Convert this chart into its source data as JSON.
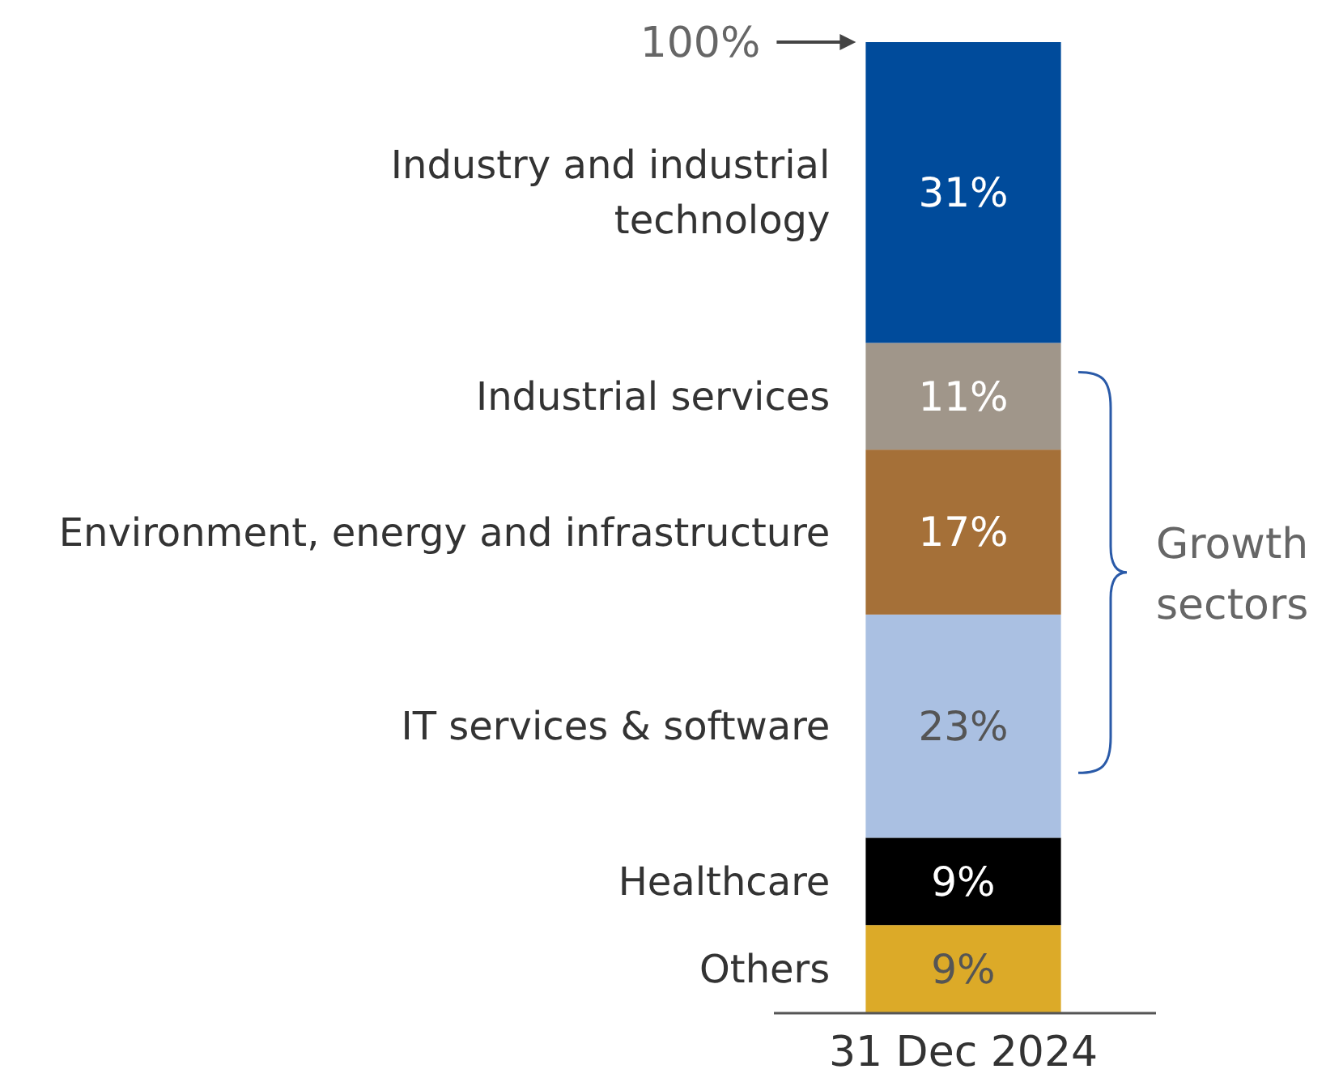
{
  "chart_data": {
    "type": "bar",
    "stacked": true,
    "categories": [
      "31 Dec 2024"
    ],
    "legend": false,
    "series": [
      {
        "name": "Others",
        "color": "#dcaa28",
        "values": [
          9
        ],
        "value_labels": [
          "9%"
        ]
      },
      {
        "name": "Healthcare",
        "color": "#000000",
        "values": [
          9
        ],
        "value_labels": [
          "9%"
        ]
      },
      {
        "name": "IT services & software",
        "color": "#aac0e2",
        "values": [
          23
        ],
        "value_labels": [
          "23%"
        ]
      },
      {
        "name": "Environment, energy and infrastructure",
        "color": "#a57038",
        "values": [
          17
        ],
        "value_labels": [
          "17%"
        ]
      },
      {
        "name": "Industrial services",
        "color": "#a0968a",
        "values": [
          11
        ],
        "value_labels": [
          "11%"
        ]
      },
      {
        "name": "Industry and industrial technology",
        "color": "#004b9b",
        "values": [
          31
        ],
        "value_labels": [
          "31%"
        ]
      }
    ],
    "annotations": [
      "100%",
      "Growth sectors"
    ]
  }
}
